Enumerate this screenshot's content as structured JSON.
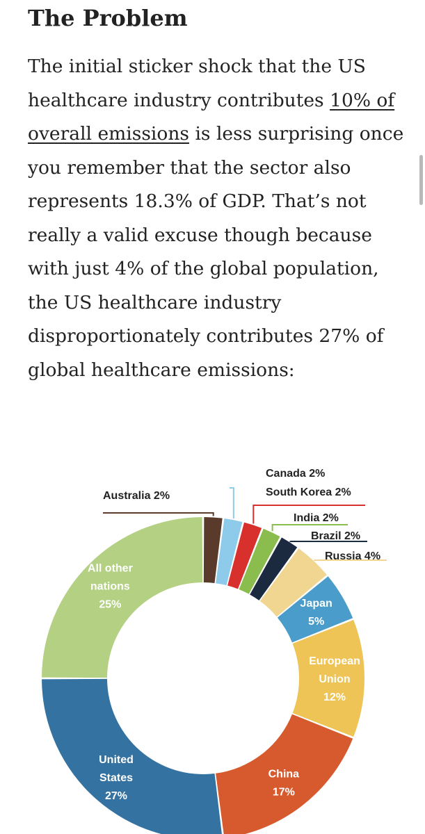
{
  "article": {
    "heading": "The Problem",
    "para_before_link": "The initial sticker shock that the US healthcare industry contributes ",
    "link_text": "10% of overall emissions",
    "para_after_link": " is less surprising once you remember that the sector also represents 18.3% of GDP. That’s not really a valid excuse though because with just 4% of the global population, the US healthcare industry disproportionately contributes 27% of global healthcare emissions:"
  },
  "chart_data": {
    "type": "pie",
    "donut": true,
    "unit": "%",
    "slices": [
      {
        "label": "Australia 2%",
        "lines": [
          "Australia 2%"
        ],
        "value": 2,
        "color": "#5a3a2a",
        "label_mode": "outside-left"
      },
      {
        "label": "Canada 2%",
        "lines": [
          "Canada 2%"
        ],
        "value": 2,
        "color": "#8ecbea",
        "label_mode": "outside-right"
      },
      {
        "label": "South Korea 2%",
        "lines": [
          "South Korea 2%"
        ],
        "value": 2,
        "color": "#d8302c",
        "label_mode": "outside-right"
      },
      {
        "label": "India 2%",
        "lines": [
          "India 2%"
        ],
        "value": 2,
        "color": "#8bbd4e",
        "label_mode": "outside-right"
      },
      {
        "label": "Brazil 2%",
        "lines": [
          "Brazil 2%"
        ],
        "value": 2,
        "color": "#1c2a40",
        "label_mode": "outside-right"
      },
      {
        "label": "Russia 4%",
        "lines": [
          "Russia 4%"
        ],
        "value": 4,
        "color": "#f0d690",
        "label_mode": "outside-right"
      },
      {
        "label": "Japan 5%",
        "lines": [
          "Japan",
          "5%"
        ],
        "value": 5,
        "color": "#4a9ccb",
        "label_mode": "inside"
      },
      {
        "label": "European Union 12%",
        "lines": [
          "European",
          "Union",
          "12%"
        ],
        "value": 12,
        "color": "#edc455",
        "label_mode": "inside"
      },
      {
        "label": "China 17%",
        "lines": [
          "China",
          "17%"
        ],
        "value": 17,
        "color": "#d65a2d",
        "label_mode": "inside"
      },
      {
        "label": "United States 27%",
        "lines": [
          "United",
          "States",
          "27%"
        ],
        "value": 27,
        "color": "#3472a1",
        "label_mode": "inside"
      },
      {
        "label": "All other nations 25%",
        "lines": [
          "All other",
          "nations",
          "25%"
        ],
        "value": 25,
        "color": "#b3d083",
        "label_mode": "inside"
      }
    ]
  }
}
